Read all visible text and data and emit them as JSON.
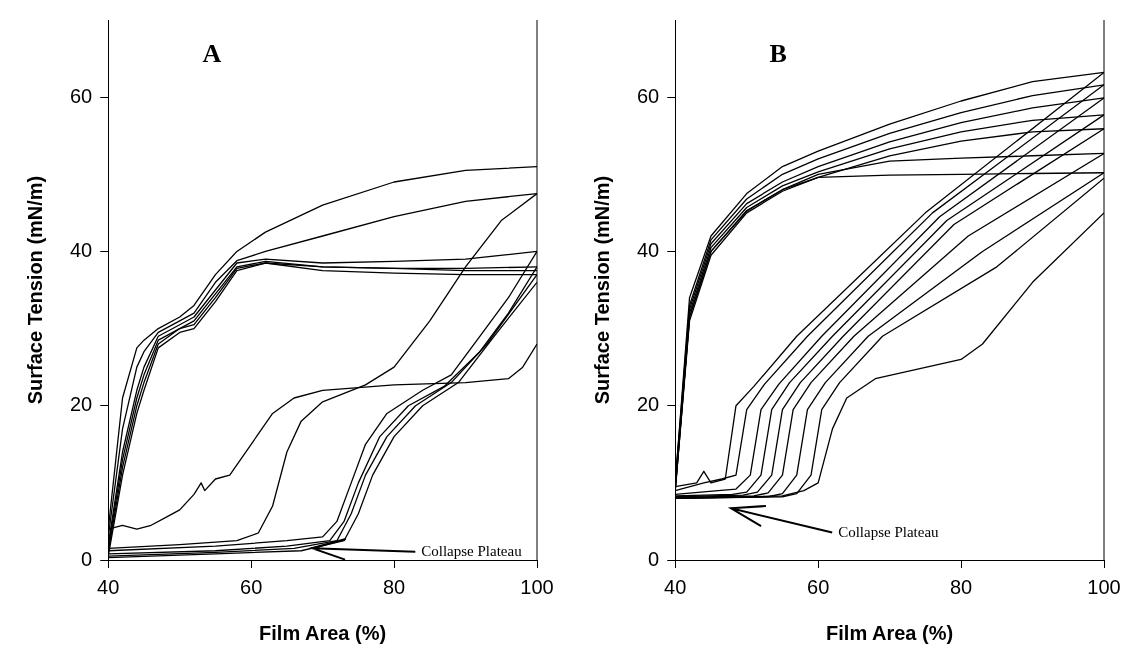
{
  "chart_data": [
    {
      "type": "line",
      "xlabel": "Film Area (%)",
      "ylabel": "Surface Tension (mN/m)",
      "xlim": [
        40,
        100
      ],
      "ylim": [
        0,
        70
      ],
      "xticks": [
        40,
        60,
        80,
        100
      ],
      "yticks": [
        0,
        20,
        40,
        60
      ],
      "grid": false,
      "legend": false,
      "annotations": [
        "A",
        {
          "text": "Collapse Plateau",
          "x": 68.5,
          "y": 1.5
        }
      ],
      "series": [
        {
          "color": "#000000",
          "x": [
            100,
            90,
            80,
            70,
            62,
            58,
            55,
            52,
            50,
            47,
            45,
            44,
            42,
            40
          ],
          "values": [
            51,
            50.5,
            49,
            46,
            42.5,
            40,
            37,
            33,
            31.5,
            30,
            28.5,
            27.5,
            21,
            4
          ]
        },
        {
          "color": "#000000",
          "x": [
            100,
            90,
            80,
            70,
            62,
            58,
            55,
            52,
            50,
            47,
            45,
            44,
            42,
            40
          ],
          "values": [
            47.5,
            46.5,
            44.5,
            42,
            40,
            38.8,
            36,
            32,
            31,
            29.5,
            27,
            25,
            17,
            3
          ]
        },
        {
          "color": "#000000",
          "x": [
            100,
            90,
            80,
            70,
            62,
            58,
            55,
            52,
            50,
            47,
            45,
            44,
            42,
            40
          ],
          "values": [
            40,
            39,
            38.7,
            38.5,
            39,
            38.5,
            35,
            31.5,
            30.5,
            29,
            25,
            22,
            14,
            2
          ]
        },
        {
          "color": "#000000",
          "x": [
            100,
            90,
            80,
            70,
            62,
            58,
            55,
            52,
            50,
            47,
            45,
            44,
            42,
            40
          ],
          "values": [
            38,
            37.8,
            37.8,
            38,
            38.7,
            38,
            34.5,
            31,
            30,
            28.5,
            24,
            21,
            13,
            1.5
          ]
        },
        {
          "color": "#000000",
          "x": [
            100,
            90,
            80,
            70,
            62,
            58,
            55,
            52,
            50,
            47,
            45,
            44,
            42,
            40
          ],
          "values": [
            37.5,
            37.5,
            37.8,
            38,
            38.5,
            37.8,
            34,
            30.5,
            30,
            28,
            23,
            20,
            12,
            1
          ]
        },
        {
          "color": "#000000",
          "x": [
            100,
            90,
            80,
            70,
            62,
            58,
            55,
            52,
            50,
            47,
            45,
            44,
            42,
            40
          ],
          "values": [
            37,
            37,
            37.2,
            37.5,
            38.5,
            37.5,
            33.5,
            30,
            29.5,
            27.5,
            22,
            19,
            11,
            0.5
          ]
        },
        {
          "color": "#000000",
          "x": [
            40,
            42,
            44,
            46,
            48,
            50,
            52,
            53,
            53.5,
            55,
            57,
            60,
            63,
            66,
            70,
            80,
            90,
            96,
            98,
            100
          ],
          "values": [
            4,
            4.5,
            4,
            4.5,
            5.5,
            6.5,
            8.5,
            10,
            9,
            10.5,
            11,
            15,
            19,
            21,
            22,
            22.7,
            23,
            23.5,
            25,
            28
          ]
        },
        {
          "color": "#000000",
          "x": [
            40,
            50,
            58,
            61,
            63,
            65,
            67,
            70,
            76,
            80,
            85,
            90,
            95,
            100
          ],
          "values": [
            1.5,
            2,
            2.5,
            3.5,
            7,
            14,
            18,
            20.5,
            22.7,
            25,
            31,
            38,
            44,
            47.5
          ]
        },
        {
          "color": "#000000",
          "x": [
            40,
            55,
            65,
            70,
            72,
            74,
            76,
            79,
            84,
            88,
            92,
            96,
            100
          ],
          "values": [
            1.2,
            1.8,
            2.5,
            3,
            5,
            10,
            15,
            19,
            22,
            24,
            29,
            34,
            40
          ]
        },
        {
          "color": "#000000",
          "x": [
            40,
            55,
            65,
            71,
            73,
            75,
            78,
            82,
            87,
            92,
            96,
            100
          ],
          "values": [
            0.8,
            1.2,
            1.8,
            2.5,
            5,
            10,
            16,
            20,
            22.5,
            27,
            32,
            38
          ]
        },
        {
          "color": "#000000",
          "x": [
            40,
            55,
            66,
            72,
            74,
            76,
            79,
            83,
            88,
            93,
            100
          ],
          "values": [
            0.5,
            1,
            1.5,
            2.5,
            6,
            11,
            16,
            20,
            23,
            28,
            37
          ]
        },
        {
          "color": "#000000",
          "x": [
            40,
            55,
            67,
            73,
            75,
            77,
            80,
            84,
            89,
            94,
            100
          ],
          "values": [
            0.3,
            0.8,
            1.2,
            2.5,
            6,
            11,
            16,
            20,
            23,
            29,
            36
          ]
        }
      ]
    },
    {
      "type": "line",
      "xlabel": "Film Area (%)",
      "ylabel": "Surface Tension (mN/m)",
      "xlim": [
        40,
        100
      ],
      "ylim": [
        0,
        70
      ],
      "xticks": [
        40,
        60,
        80,
        100
      ],
      "yticks": [
        0,
        20,
        40,
        60
      ],
      "grid": false,
      "legend": false,
      "annotations": [
        "B",
        "Collapse Plateau"
      ],
      "series": [
        {
          "color": "#000000",
          "x": [
            100,
            90,
            80,
            70,
            60,
            55,
            50,
            45,
            42,
            40
          ],
          "values": [
            63.2,
            62,
            59.5,
            56.5,
            53,
            51,
            47.5,
            42,
            34,
            10
          ]
        },
        {
          "color": "#000000",
          "x": [
            100,
            90,
            80,
            70,
            60,
            55,
            50,
            45,
            42,
            40
          ],
          "values": [
            61.6,
            60.2,
            58,
            55.3,
            52,
            50,
            46.8,
            41.5,
            33,
            10
          ]
        },
        {
          "color": "#000000",
          "x": [
            100,
            90,
            80,
            70,
            60,
            55,
            50,
            45,
            42,
            40
          ],
          "values": [
            59.9,
            58.6,
            56.7,
            54.2,
            51,
            49,
            46.2,
            41,
            32.5,
            9.5
          ]
        },
        {
          "color": "#000000",
          "x": [
            100,
            90,
            80,
            70,
            60,
            55,
            50,
            45,
            42,
            40
          ],
          "values": [
            57.7,
            57,
            55.5,
            53.3,
            50.3,
            48.5,
            45.7,
            40.5,
            32,
            9.5
          ]
        },
        {
          "color": "#000000",
          "x": [
            100,
            90,
            80,
            70,
            60,
            55,
            50,
            45,
            42,
            40
          ],
          "values": [
            55.9,
            55.5,
            54.3,
            52.4,
            49.6,
            48,
            45.3,
            40,
            31.5,
            9
          ]
        },
        {
          "color": "#000000",
          "x": [
            100,
            90,
            80,
            70,
            60,
            55,
            50,
            45,
            42,
            40
          ],
          "values": [
            52.7,
            52.4,
            52.1,
            51.7,
            50,
            48,
            45.2,
            40,
            31.5,
            9
          ]
        },
        {
          "color": "#000000",
          "x": [
            100,
            90,
            80,
            70,
            60,
            55,
            50,
            45,
            42,
            40
          ],
          "values": [
            50.2,
            50.1,
            50,
            49.9,
            49.6,
            47.8,
            45,
            39.5,
            31,
            9
          ]
        },
        {
          "color": "#000000",
          "x": [
            40,
            43,
            44,
            45,
            47,
            48.5,
            51,
            57,
            75,
            100
          ],
          "values": [
            9.5,
            10,
            11.5,
            10,
            10.5,
            20,
            22.5,
            29,
            45,
            63.2
          ]
        },
        {
          "color": "#000000",
          "x": [
            40,
            44,
            46.5,
            48.5,
            50,
            52.5,
            58.5,
            76,
            100
          ],
          "values": [
            9,
            10,
            10.5,
            11,
            19.5,
            22.8,
            29,
            45,
            61.6
          ]
        },
        {
          "color": "#000000",
          "x": [
            40,
            46,
            48.5,
            50.5,
            52,
            54.5,
            60.5,
            77,
            100
          ],
          "values": [
            8.5,
            9,
            9.2,
            11,
            19.5,
            22.8,
            29,
            44.5,
            59.9
          ]
        },
        {
          "color": "#000000",
          "x": [
            40,
            48,
            50,
            52,
            53.5,
            56,
            62,
            78,
            100
          ],
          "values": [
            8.3,
            8.5,
            8.8,
            11,
            19.5,
            23,
            29,
            44,
            57.7
          ]
        },
        {
          "color": "#000000",
          "x": [
            40,
            49.5,
            51.5,
            53.5,
            55,
            57.5,
            63.5,
            79,
            100
          ],
          "values": [
            8.2,
            8.4,
            8.8,
            11,
            19.5,
            23,
            29,
            43.5,
            55.9
          ]
        },
        {
          "color": "#000000",
          "x": [
            40,
            51,
            53,
            55,
            56.5,
            59,
            65,
            81,
            100
          ],
          "values": [
            8.1,
            8.3,
            8.7,
            11,
            19.5,
            23,
            29,
            42,
            52.7
          ]
        },
        {
          "color": "#000000",
          "x": [
            40,
            53,
            55,
            57,
            58.5,
            61,
            67,
            83,
            100
          ],
          "values": [
            8,
            8.2,
            8.6,
            11,
            19.5,
            23,
            29,
            40,
            50.2
          ]
        },
        {
          "color": "#000000",
          "x": [
            40,
            55,
            57,
            59,
            60.5,
            63,
            69,
            85,
            100
          ],
          "values": [
            8,
            8.2,
            8.6,
            11,
            19.5,
            23,
            29,
            38,
            49.5
          ]
        },
        {
          "color": "#000000",
          "x": [
            40,
            55,
            58,
            60,
            62,
            64,
            68,
            80,
            83,
            90,
            100
          ],
          "values": [
            8,
            8.3,
            9,
            10,
            17,
            21,
            23.5,
            26,
            28,
            36,
            45
          ]
        }
      ]
    }
  ]
}
